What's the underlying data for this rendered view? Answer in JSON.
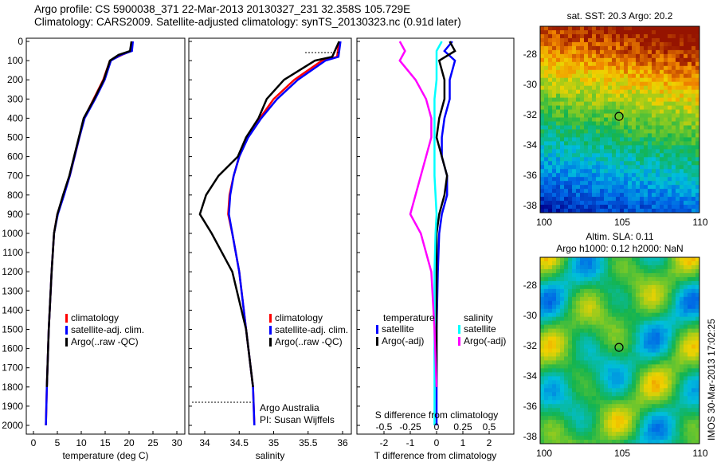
{
  "title": {
    "line1": "Argo profile: CS 5900038_371 22-Mar-2013 20130327_231 32.358S 105.729E",
    "line2": "Climatology: CARS2009. Satellite-adjusted climatology: synTS_20130323.nc (0.91d later)"
  },
  "footer_text": "IMOS 30-Mar-2013 17:02:25",
  "credit": {
    "line1": "Argo Australia",
    "line2": "PI: Susan Wijffels"
  },
  "colors": {
    "clim": "#ff0000",
    "sat": "#0000ff",
    "argo": "#000000",
    "sal_sat": "#00ffff",
    "sal_argo": "#ff00ff"
  },
  "chart_data": [
    {
      "type": "line",
      "xlabel": "temperature (deg C)",
      "xlim": [
        -1,
        32
      ],
      "xticks": [
        "0",
        "5",
        "10",
        "15",
        "20",
        "25",
        "30"
      ],
      "ylim": [
        2050,
        0
      ],
      "yticks": [
        "0",
        "100",
        "200",
        "300",
        "400",
        "500",
        "600",
        "700",
        "800",
        "900",
        "1000",
        "1100",
        "1200",
        "1300",
        "1400",
        "1500",
        "1600",
        "1700",
        "1800",
        "1900",
        "2000"
      ],
      "legend": [
        "climatology",
        "satellite-adj. clim.",
        "Argo(..raw -QC)"
      ],
      "depth": [
        0,
        50,
        70,
        100,
        200,
        300,
        400,
        500,
        600,
        700,
        800,
        900,
        1000,
        1200,
        1500,
        1800,
        2000
      ],
      "series": [
        {
          "name": "climatology",
          "values": [
            20.6,
            20.4,
            18.5,
            16,
            14.6,
            12.6,
            10.6,
            9.6,
            8.6,
            7.6,
            6.3,
            5,
            4.3,
            3.8,
            3.2,
            2.8,
            2.6
          ]
        },
        {
          "name": "satellite-adj. clim.",
          "values": [
            20.8,
            20.6,
            18.3,
            16.2,
            14.9,
            12.9,
            10.7,
            9.6,
            8.6,
            7.6,
            6.4,
            5.1,
            4.3,
            3.8,
            3.2,
            2.8,
            2.6
          ]
        },
        {
          "name": "Argo",
          "values": [
            20.5,
            20.2,
            17.8,
            16,
            14.7,
            12.7,
            10.5,
            9.5,
            8.5,
            7.5,
            6.2,
            5,
            4.3,
            3.8,
            3.2,
            2.8,
            null
          ]
        }
      ]
    },
    {
      "type": "line",
      "xlabel": "salinity",
      "xlim": [
        33.77,
        36.1
      ],
      "xticks": [
        "34",
        "34.5",
        "35",
        "35.5",
        "36"
      ],
      "ylim": [
        2050,
        0
      ],
      "legend": [
        "climatology",
        "satellite-adj. clim.",
        "Argo(..raw -QC)"
      ],
      "depth": [
        0,
        80,
        100,
        200,
        300,
        400,
        500,
        600,
        700,
        800,
        900,
        1000,
        1200,
        1500,
        1800,
        2000
      ],
      "series": [
        {
          "name": "climatology",
          "values": [
            35.95,
            35.92,
            35.7,
            35.3,
            35.0,
            34.8,
            34.62,
            34.5,
            34.42,
            34.36,
            34.34,
            34.4,
            34.5,
            34.6,
            34.7,
            34.72
          ]
        },
        {
          "name": "satellite-adj. clim.",
          "values": [
            35.97,
            35.94,
            35.75,
            35.35,
            35.05,
            34.82,
            34.63,
            34.5,
            34.42,
            34.37,
            34.35,
            34.4,
            34.5,
            34.6,
            34.7,
            34.72
          ]
        },
        {
          "name": "Argo",
          "values": [
            35.95,
            35.85,
            35.6,
            35.15,
            34.9,
            34.78,
            34.6,
            34.48,
            34.2,
            34.02,
            33.93,
            34.1,
            34.4,
            34.6,
            34.7,
            null
          ]
        }
      ]
    },
    {
      "type": "line",
      "xlabel": "T difference from climatology",
      "x2label": "S difference from climatology",
      "xlim": [
        -3,
        3
      ],
      "xticks": [
        "-2",
        "-1",
        "0",
        "1",
        "2"
      ],
      "x2ticks": [
        "-0.5",
        "-0.25",
        "0",
        "0.25",
        "0.5"
      ],
      "ylim": [
        2050,
        0
      ],
      "legend_t": {
        "title": "temperature",
        "items": [
          "satellite",
          "Argo(-adj)"
        ]
      },
      "legend_s": {
        "title": "salinity",
        "items": [
          "satellite",
          "Argo(-adj)"
        ]
      },
      "depth": [
        0,
        50,
        100,
        200,
        300,
        400,
        500,
        600,
        700,
        800,
        900,
        1000,
        1200,
        1500,
        1800,
        2000
      ],
      "series": [
        {
          "name": "T satellite",
          "values": [
            0.6,
            0.3,
            0.7,
            0.5,
            0.5,
            0.3,
            0.2,
            0.2,
            0.4,
            0.4,
            0.2,
            0.1,
            0.05,
            0,
            0,
            0
          ]
        },
        {
          "name": "T Argo(-adj)",
          "values": [
            0.5,
            0.7,
            0.1,
            0.3,
            0.3,
            0.1,
            0.0,
            0.2,
            0.4,
            0.3,
            0.1,
            0.0,
            0.0,
            0.0,
            0.0,
            null
          ]
        },
        {
          "name": "S satellite",
          "values": [
            0.05,
            0.0,
            0.0,
            0.0,
            -0.02,
            -0.02,
            -0.02,
            -0.02,
            -0.02,
            -0.01,
            0,
            -0.01,
            -0.02,
            -0.02,
            -0.02,
            -0.02
          ]
        },
        {
          "name": "S Argo(-adj)",
          "values": [
            -0.35,
            -0.3,
            -0.35,
            -0.2,
            -0.1,
            -0.05,
            -0.05,
            -0.1,
            -0.15,
            -0.2,
            -0.25,
            -0.15,
            -0.05,
            -0.02,
            0,
            null
          ]
        }
      ]
    },
    {
      "type": "heatmap",
      "title": "sat. SST: 20.3  Argo: 20.2",
      "xticks": [
        "100",
        "105",
        "110"
      ],
      "yticks": [
        "-28",
        "-30",
        "-32",
        "-34",
        "-36",
        "-38"
      ],
      "marker": [
        105.729,
        -32.358
      ]
    },
    {
      "type": "heatmap",
      "title1": "Altim. SLA: 0.11",
      "title2": "Argo h1000: 0.12 h2000: NaN",
      "xticks": [
        "100",
        "105",
        "110"
      ],
      "yticks": [
        "-28",
        "-30",
        "-32",
        "-34",
        "-36",
        "-38"
      ],
      "marker": [
        105.729,
        -32.358
      ]
    }
  ]
}
